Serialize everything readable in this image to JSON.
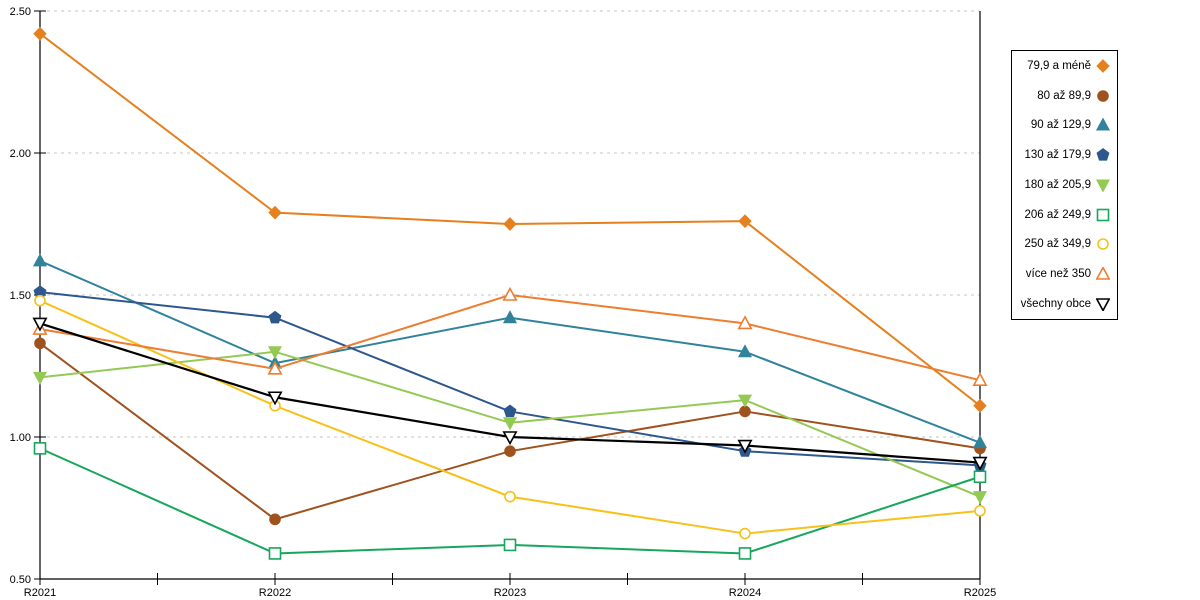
{
  "chart_data": {
    "type": "line",
    "title": "",
    "xlabel": "",
    "ylabel": "",
    "x": [
      "R2021",
      "R2022",
      "R2023",
      "R2024",
      "R2025"
    ],
    "ylim": [
      0.5,
      2.5
    ],
    "yticks": [
      0.5,
      1.0,
      1.5,
      2.0,
      2.5
    ],
    "ytick_labels": [
      "0.50",
      "1.00",
      "1.50",
      "2.00",
      "2.50"
    ],
    "grid": "horizontal-dashed",
    "gridline_color": "#c6c6c6",
    "axis_color": "#000000",
    "legend_position": "right-outside",
    "series": [
      {
        "name": "79,9 a méně",
        "marker": "diamond-filled",
        "color": "#E5801F",
        "values": [
          2.42,
          1.79,
          1.75,
          1.76,
          1.11
        ]
      },
      {
        "name": "80 až 89,9",
        "marker": "circle-filled",
        "color": "#A0521E",
        "values": [
          1.33,
          0.71,
          0.95,
          1.09,
          0.96
        ]
      },
      {
        "name": "90 až 129,9",
        "marker": "triangle-up-filled",
        "color": "#31839B",
        "values": [
          1.62,
          1.26,
          1.42,
          1.3,
          0.98
        ]
      },
      {
        "name": "130 až 179,9",
        "marker": "pentagon-filled",
        "color": "#2E578E",
        "values": [
          1.51,
          1.42,
          1.09,
          0.95,
          0.9
        ]
      },
      {
        "name": "180 až 205,9",
        "marker": "triangle-down-filled",
        "color": "#94C954",
        "values": [
          1.21,
          1.3,
          1.05,
          1.13,
          0.79
        ]
      },
      {
        "name": "206 až 249,9",
        "marker": "square-open",
        "color": "#17A65B",
        "values": [
          0.96,
          0.59,
          0.62,
          0.59,
          0.86
        ]
      },
      {
        "name": "250 až 349,9",
        "marker": "circle-open",
        "color": "#F7C11A",
        "values": [
          1.48,
          1.11,
          0.79,
          0.66,
          0.74
        ]
      },
      {
        "name": "více než 350",
        "marker": "triangle-up-open",
        "color": "#ED7D31",
        "values": [
          1.38,
          1.24,
          1.5,
          1.4,
          1.2
        ]
      },
      {
        "name": "všechny obce",
        "marker": "triangle-down-open",
        "color": "#000000",
        "values": [
          1.4,
          1.14,
          1.0,
          0.97,
          0.91
        ]
      }
    ]
  }
}
